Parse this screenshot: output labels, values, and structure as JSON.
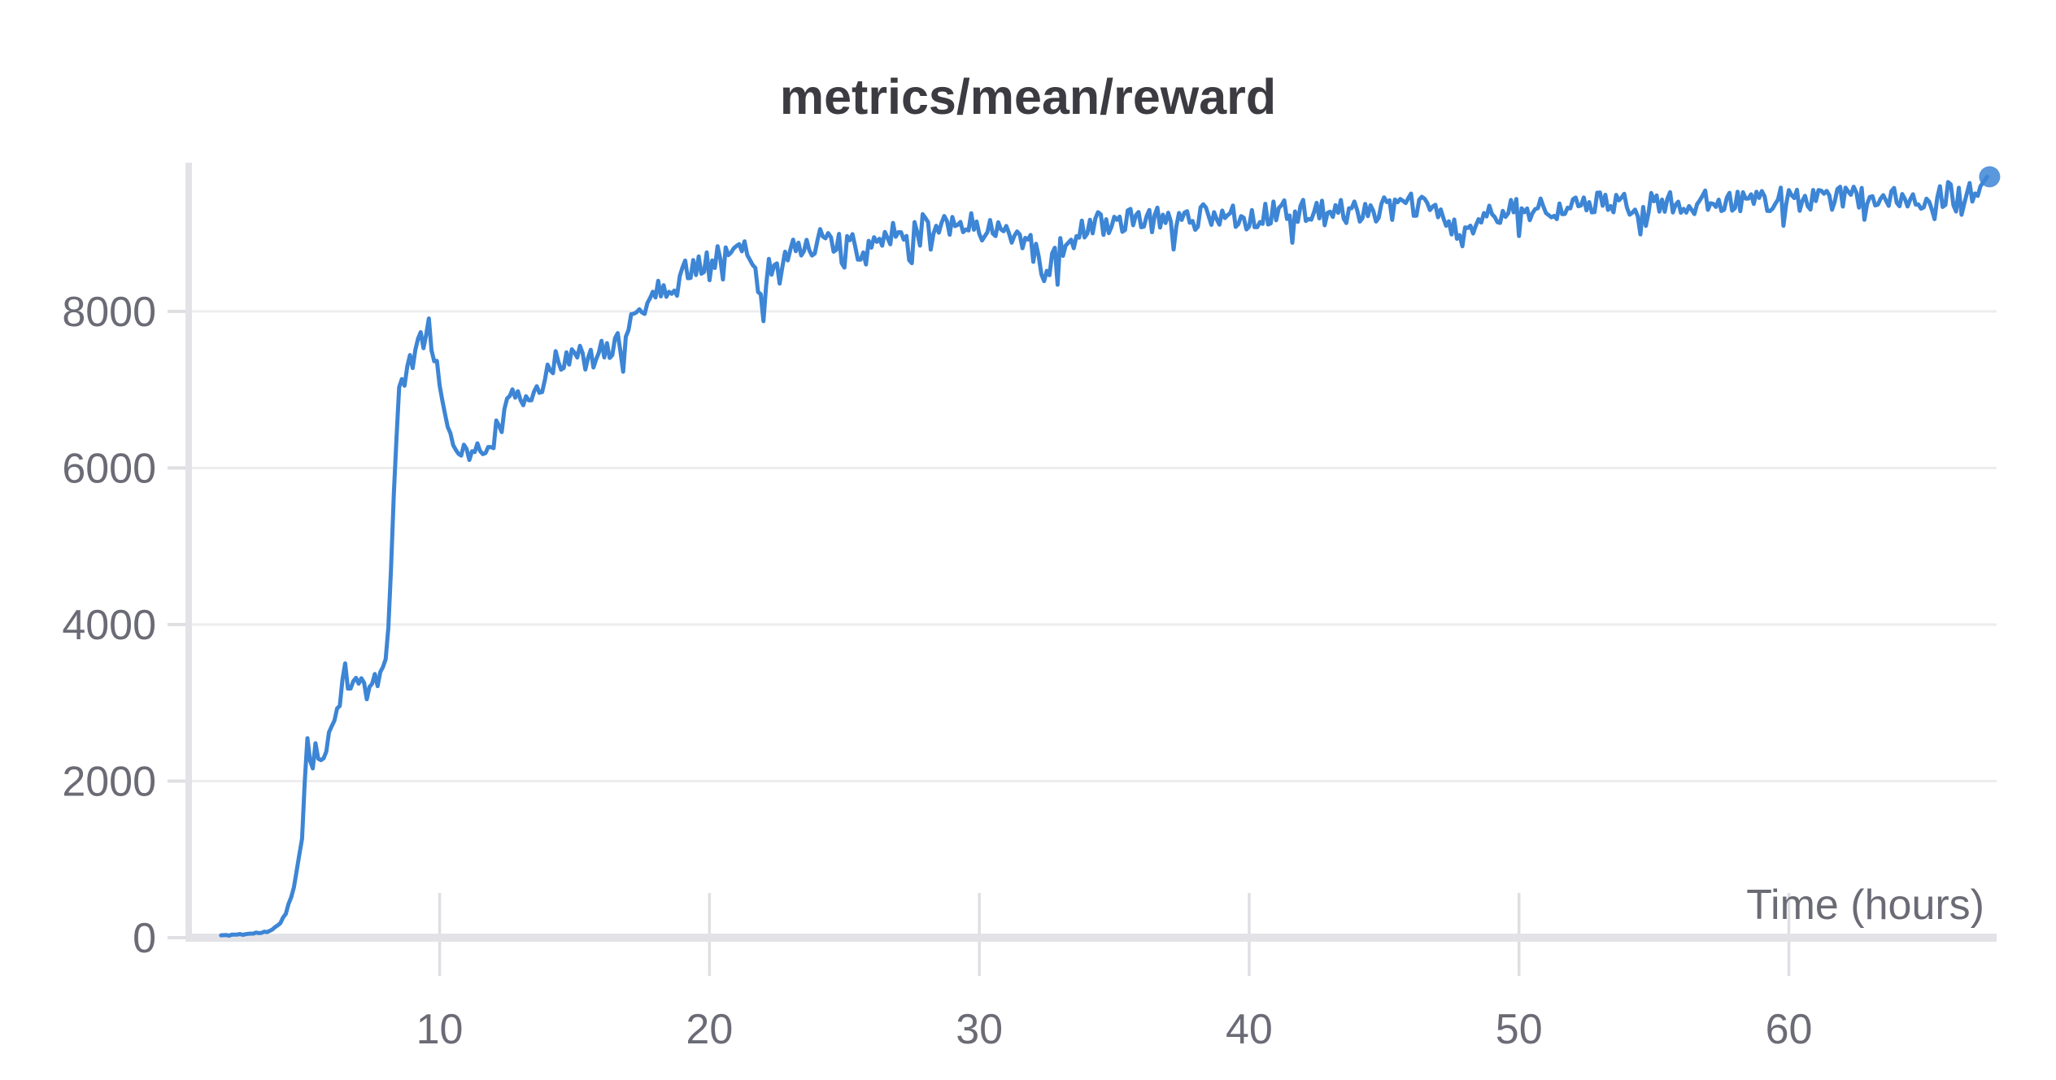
{
  "chart_data": {
    "type": "line",
    "title": "metrics/mean/reward",
    "xlabel": "Time (hours)",
    "ylabel": "",
    "series_name": "metrics/mean/reward",
    "line_color": "#3d85d5",
    "grid_color": "#ededf0",
    "axis_color": "#e3e3e7",
    "tick_color": "#dfdfe3",
    "label_color": "#6b6b76",
    "title_color": "#3b3b41",
    "x_ticks": [
      10,
      20,
      30,
      40,
      50,
      60
    ],
    "y_ticks": [
      0,
      2000,
      4000,
      6000,
      8000
    ],
    "x_range": [
      0.7,
      67.7
    ],
    "y_range": [
      0,
      9900
    ],
    "grid": true,
    "legend": false,
    "end_marker": true,
    "trend": [
      [
        1.9,
        30
      ],
      [
        3.0,
        50
      ],
      [
        3.7,
        80
      ],
      [
        4.0,
        150
      ],
      [
        4.3,
        300
      ],
      [
        4.6,
        700
      ],
      [
        4.75,
        900
      ],
      [
        4.9,
        1400
      ],
      [
        5.0,
        2000
      ],
      [
        5.1,
        2600
      ],
      [
        5.25,
        2150
      ],
      [
        5.4,
        2450
      ],
      [
        5.55,
        2350
      ],
      [
        5.7,
        2200
      ],
      [
        5.9,
        2600
      ],
      [
        6.1,
        2900
      ],
      [
        6.35,
        3100
      ],
      [
        6.5,
        3500
      ],
      [
        6.65,
        3000
      ],
      [
        6.8,
        3250
      ],
      [
        7.0,
        3350
      ],
      [
        7.2,
        3200
      ],
      [
        7.45,
        3050
      ],
      [
        7.6,
        3300
      ],
      [
        7.8,
        3350
      ],
      [
        8.0,
        3500
      ],
      [
        8.15,
        4300
      ],
      [
        8.3,
        5600
      ],
      [
        8.45,
        6900
      ],
      [
        8.6,
        7100
      ],
      [
        8.8,
        7300
      ],
      [
        9.0,
        7400
      ],
      [
        9.2,
        7550
      ],
      [
        9.45,
        7650
      ],
      [
        9.6,
        7900
      ],
      [
        9.75,
        7500
      ],
      [
        9.9,
        7300
      ],
      [
        10.1,
        6900
      ],
      [
        10.3,
        6600
      ],
      [
        10.55,
        6350
      ],
      [
        10.8,
        6250
      ],
      [
        11.0,
        6150
      ],
      [
        11.2,
        6300
      ],
      [
        11.4,
        6200
      ],
      [
        11.6,
        6100
      ],
      [
        11.8,
        6350
      ],
      [
        12.0,
        6400
      ],
      [
        12.3,
        6600
      ],
      [
        12.6,
        6800
      ],
      [
        12.9,
        7000
      ],
      [
        13.2,
        6900
      ],
      [
        13.5,
        7050
      ],
      [
        13.9,
        7100
      ],
      [
        14.3,
        7350
      ],
      [
        14.7,
        7400
      ],
      [
        15.1,
        7450
      ],
      [
        15.5,
        7350
      ],
      [
        15.9,
        7450
      ],
      [
        16.3,
        7550
      ],
      [
        16.7,
        7600
      ],
      [
        17.1,
        7900
      ],
      [
        17.5,
        8050
      ],
      [
        17.9,
        8200
      ],
      [
        18.3,
        8350
      ],
      [
        18.6,
        8250
      ],
      [
        19.0,
        8500
      ],
      [
        19.4,
        8550
      ],
      [
        19.8,
        8650
      ],
      [
        20.2,
        8700
      ],
      [
        20.7,
        8750
      ],
      [
        21.2,
        8800
      ],
      [
        21.6,
        8550
      ],
      [
        21.9,
        8250
      ],
      [
        22.2,
        8550
      ],
      [
        22.6,
        8700
      ],
      [
        23.0,
        8750
      ],
      [
        23.5,
        8850
      ],
      [
        24.0,
        8900
      ],
      [
        24.6,
        8850
      ],
      [
        25.2,
        8900
      ],
      [
        25.7,
        8600
      ],
      [
        26.1,
        8900
      ],
      [
        26.6,
        9000
      ],
      [
        27.2,
        9050
      ],
      [
        28.0,
        9100
      ],
      [
        28.8,
        9150
      ],
      [
        29.6,
        9100
      ],
      [
        30.4,
        9050
      ],
      [
        31.2,
        9000
      ],
      [
        31.9,
        8950
      ],
      [
        32.4,
        8500
      ],
      [
        32.9,
        8750
      ],
      [
        33.5,
        8950
      ],
      [
        34.2,
        9100
      ],
      [
        35.0,
        9150
      ],
      [
        36.0,
        9150
      ],
      [
        37.0,
        9200
      ],
      [
        38.0,
        9200
      ],
      [
        39.0,
        9250
      ],
      [
        40.0,
        9200
      ],
      [
        41.0,
        9250
      ],
      [
        42.0,
        9300
      ],
      [
        43.0,
        9250
      ],
      [
        44.0,
        9300
      ],
      [
        45.0,
        9300
      ],
      [
        46.0,
        9350
      ],
      [
        47.0,
        9300
      ],
      [
        47.9,
        8900
      ],
      [
        48.4,
        9150
      ],
      [
        49.0,
        9250
      ],
      [
        50.0,
        9300
      ],
      [
        51.0,
        9350
      ],
      [
        52.0,
        9300
      ],
      [
        53.0,
        9400
      ],
      [
        54.0,
        9350
      ],
      [
        55.0,
        9400
      ],
      [
        56.0,
        9350
      ],
      [
        57.0,
        9400
      ],
      [
        58.0,
        9450
      ],
      [
        59.0,
        9400
      ],
      [
        60.0,
        9450
      ],
      [
        61.0,
        9400
      ],
      [
        62.0,
        9450
      ],
      [
        63.0,
        9500
      ],
      [
        64.0,
        9450
      ],
      [
        65.0,
        9400
      ],
      [
        65.8,
        9500
      ],
      [
        66.5,
        9450
      ],
      [
        67.0,
        9550
      ],
      [
        67.35,
        9720
      ]
    ],
    "noise": {
      "seed": 11,
      "step": 0.1,
      "segments": [
        [
          4.3,
          12
        ],
        [
          5.0,
          60
        ],
        [
          8.0,
          130
        ],
        [
          8.6,
          90
        ],
        [
          12.2,
          150
        ],
        [
          16.5,
          160
        ],
        [
          21.0,
          150
        ],
        [
          35.0,
          170
        ],
        [
          68.0,
          160
        ]
      ],
      "dip_prob": 0.05,
      "dip_scale": 1.6
    }
  }
}
